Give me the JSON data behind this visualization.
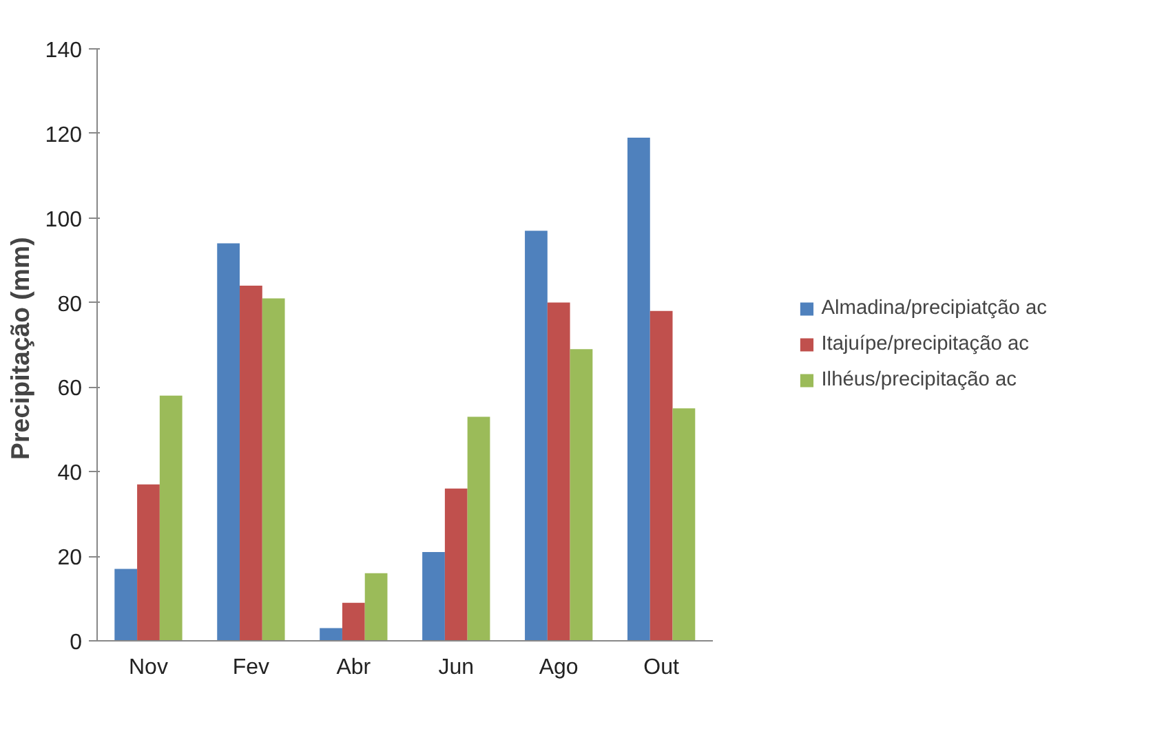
{
  "chart_data": {
    "type": "bar",
    "ylabel": "Precipitação  (mm)",
    "categories": [
      "Nov",
      "Fev",
      "Abr",
      "Jun",
      "Ago",
      "Out"
    ],
    "series": [
      {
        "name": "Almadina/precipiatção ac",
        "color": "#4f81bd",
        "values": [
          17,
          94,
          3,
          21,
          97,
          119
        ]
      },
      {
        "name": "Itajuípe/precipitação ac",
        "color": "#c0504d",
        "values": [
          37,
          84,
          9,
          36,
          80,
          78
        ]
      },
      {
        "name": "Ilhéus/precipitação ac",
        "color": "#9bbb59",
        "values": [
          58,
          81,
          16,
          53,
          69,
          55
        ]
      }
    ],
    "ylim": [
      0,
      140
    ],
    "yticks": [
      0,
      20,
      40,
      60,
      80,
      100,
      120,
      140
    ],
    "grid": false,
    "legend": "right"
  }
}
